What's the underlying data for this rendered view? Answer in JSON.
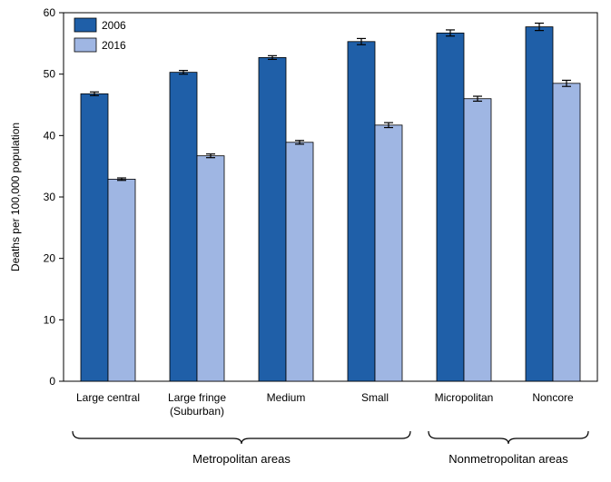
{
  "chart_data": {
    "type": "bar",
    "title": "",
    "xlabel": "",
    "ylabel": "Deaths per 100,000 population",
    "ylim": [
      0,
      60
    ],
    "yticks": [
      0,
      10,
      20,
      30,
      40,
      50,
      60
    ],
    "grid": false,
    "legend_position": "top-left",
    "categories": [
      [
        "Large central"
      ],
      [
        "Large fringe",
        "(Suburban)"
      ],
      [
        "Medium"
      ],
      [
        "Small"
      ],
      [
        "Micropolitan"
      ],
      [
        "Noncore"
      ]
    ],
    "series": [
      {
        "name": "2006",
        "color": "#1f5fa8",
        "values": [
          46.8,
          50.3,
          52.7,
          55.3,
          56.7,
          57.7
        ],
        "error": [
          0.3,
          0.3,
          0.3,
          0.5,
          0.5,
          0.6
        ]
      },
      {
        "name": "2016",
        "color": "#9fb6e3",
        "values": [
          32.9,
          36.7,
          38.9,
          41.7,
          46.0,
          48.5
        ],
        "error": [
          0.2,
          0.3,
          0.3,
          0.4,
          0.4,
          0.5
        ]
      }
    ],
    "groups": [
      {
        "label": "Metropolitan areas",
        "categories": [
          0,
          1,
          2,
          3
        ]
      },
      {
        "label": "Nonmetropolitan areas",
        "categories": [
          4,
          5
        ]
      }
    ]
  }
}
